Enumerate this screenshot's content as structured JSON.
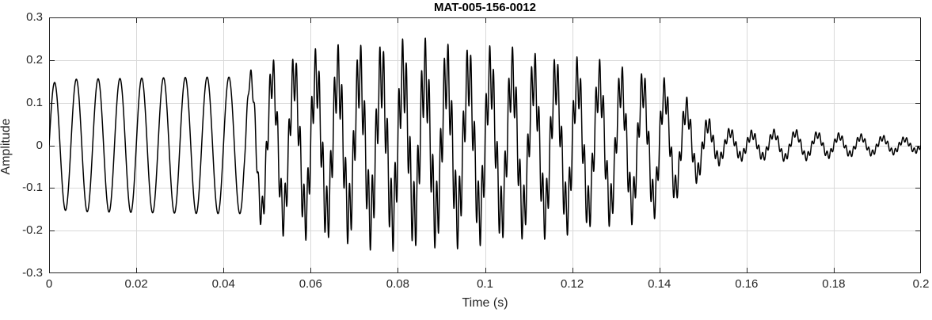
{
  "chart_data": {
    "type": "line",
    "title": "MAT-005-156-0012",
    "xlabel": "Time (s)",
    "ylabel": "Amplitude",
    "xlim": [
      0,
      0.2
    ],
    "ylim": [
      -0.3,
      0.3
    ],
    "xticks": [
      0,
      0.02,
      0.04,
      0.06,
      0.08,
      0.1,
      0.12,
      0.14,
      0.16,
      0.18,
      0.2
    ],
    "xtick_labels": [
      "0",
      "0.02",
      "0.04",
      "0.06",
      "0.08",
      "0.1",
      "0.12",
      "0.14",
      "0.16",
      "0.18",
      "0.2"
    ],
    "yticks": [
      -0.3,
      -0.2,
      -0.1,
      0,
      0.1,
      0.2,
      0.3
    ],
    "ytick_labels": [
      "-0.3",
      "-0.2",
      "-0.1",
      "0",
      "0.1",
      "0.2",
      "0.3"
    ],
    "grid": true,
    "legend": null,
    "colors": {
      "line": "#000000",
      "grid": "#d9d9d9",
      "axis": "#262626",
      "background": "#ffffff"
    },
    "line_width": 1.5,
    "signal": {
      "description": "Amplitude-modulated oscillation: ~200 Hz carrier with a superimposed ~1150 Hz burst peaking near t=0.08 s (max ~0.25), decaying after t=0.14 s to a low-amplitude ringing tail (~0.03)",
      "sample_rate": 22000,
      "duration": 0.2,
      "components": [
        {
          "freq": 200,
          "phase": 0,
          "envelope": [
            [
              0,
              0.145
            ],
            [
              0.005,
              0.155
            ],
            [
              0.035,
              0.16
            ],
            [
              0.05,
              0.16
            ],
            [
              0.08,
              0.17
            ],
            [
              0.105,
              0.165
            ],
            [
              0.125,
              0.15
            ],
            [
              0.14,
              0.13
            ],
            [
              0.147,
              0.08
            ],
            [
              0.153,
              0.035
            ],
            [
              0.16,
              0.025
            ],
            [
              0.17,
              0.03
            ],
            [
              0.18,
              0.022
            ],
            [
              0.19,
              0.018
            ],
            [
              0.2,
              0.012
            ]
          ]
        },
        {
          "freq": 1150,
          "phase": 0,
          "envelope": [
            [
              0,
              0
            ],
            [
              0.044,
              0
            ],
            [
              0.05,
              0.045
            ],
            [
              0.06,
              0.065
            ],
            [
              0.075,
              0.08
            ],
            [
              0.085,
              0.085
            ],
            [
              0.095,
              0.075
            ],
            [
              0.11,
              0.065
            ],
            [
              0.125,
              0.055
            ],
            [
              0.138,
              0.045
            ],
            [
              0.148,
              0.025
            ],
            [
              0.155,
              0.012
            ],
            [
              0.165,
              0.01
            ],
            [
              0.2,
              0.006
            ]
          ]
        }
      ]
    }
  }
}
